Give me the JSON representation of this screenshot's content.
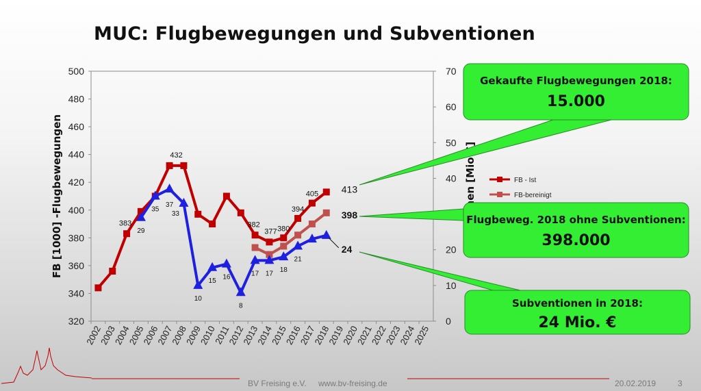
{
  "slide": {
    "title": "MUC: Flugbewegungen und Subventionen",
    "footer_org": "BV Freising e.V.",
    "footer_url": "www.bv-freising.de",
    "footer_date": "20.02.2019",
    "page_number": "3"
  },
  "colors": {
    "fb_ist": "#c00000",
    "fb_bereinigt": "#c0504d",
    "subventionen": "#1f1fe0",
    "callout_fill": "#33ee33",
    "callout_stroke": "#2a8a2a"
  },
  "callouts": [
    {
      "line1": "Gekaufte Flugbewegungen 2018:",
      "line2": "15.000"
    },
    {
      "line1": "Flugbeweg. 2018 ohne Subventionen:",
      "line2": "398.000"
    },
    {
      "line1": "Subventionen in 2018:",
      "line2": "24 Mio. €"
    }
  ],
  "chart_data": {
    "type": "line",
    "title": "MUC: Flugbewegungen und Subventionen",
    "ylabel": "FB [1000] -Flugbewegungen",
    "y2label": "tionen [Mio €]",
    "ylim": [
      320,
      500
    ],
    "y2lim": [
      0,
      70
    ],
    "yticks": [
      320,
      340,
      360,
      380,
      400,
      420,
      440,
      460,
      480,
      500
    ],
    "y2ticks": [
      0,
      10,
      20,
      30,
      40,
      50,
      60,
      70
    ],
    "categories": [
      "2002",
      "2003",
      "2004",
      "2005",
      "2006",
      "2007",
      "2008",
      "2009",
      "2010",
      "2011",
      "2012",
      "2013",
      "2014",
      "2015",
      "2016",
      "2017",
      "2018",
      "2019",
      "2020",
      "2021",
      "2022",
      "2023",
      "2024",
      "2025"
    ],
    "grid": false,
    "legend_position": "right",
    "series": [
      {
        "name": "FB - Ist",
        "axis": "left",
        "marker": "square",
        "values": [
          344,
          356,
          383,
          399,
          410,
          432,
          432,
          397,
          390,
          410,
          398,
          382,
          377,
          380,
          394,
          405,
          413,
          null,
          null,
          null,
          null,
          null,
          null,
          null
        ],
        "labels": {
          "2004": "383",
          "2007": "432",
          "2013": "382",
          "2014": "377",
          "2015": "380",
          "2016": "394",
          "2017": "405",
          "2018": "413"
        }
      },
      {
        "name": "FB-bereinigt",
        "axis": "left",
        "marker": "square",
        "values": [
          null,
          null,
          null,
          null,
          null,
          null,
          null,
          null,
          null,
          null,
          null,
          373,
          368,
          374,
          382,
          390,
          398,
          null,
          null,
          null,
          null,
          null,
          null,
          null
        ],
        "labels": {
          "2018": "398"
        }
      },
      {
        "axis": "right",
        "marker": "triangle",
        "values": [
          null,
          null,
          null,
          29,
          35,
          37,
          33,
          10,
          15,
          16,
          8,
          17,
          17,
          18,
          21,
          23,
          24,
          null,
          null,
          null,
          null,
          null,
          null,
          null
        ],
        "labels": {
          "2005": "29",
          "2006": "35",
          "2007": "37",
          "2008": "33",
          "2009": "10",
          "2010": "15",
          "2011": "16",
          "2012": "8",
          "2013": "17",
          "2014": "17",
          "2015": "18",
          "2016": "21",
          "2018": "24"
        }
      }
    ]
  }
}
